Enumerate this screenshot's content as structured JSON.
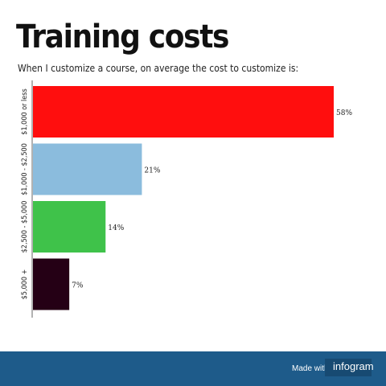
{
  "header": {
    "title": "Training costs",
    "subtitle": "When I customize a course, on average the cost to customize is:"
  },
  "footer": {
    "made_with": "Made with",
    "brand": "infogram"
  },
  "chart_data": {
    "type": "bar",
    "orientation": "horizontal",
    "title": "Training costs",
    "subtitle": "When I customize a course, on average the cost to customize is:",
    "xlabel": "",
    "ylabel": "",
    "categories": [
      "$1,000 or less",
      "$1,000 - $2,500",
      "$2,500 - $5,000",
      "$5,000 +"
    ],
    "values": [
      58,
      21,
      14,
      7
    ],
    "value_labels": [
      "58%",
      "21%",
      "14%",
      "7%"
    ],
    "colors": [
      "#ff0e0e",
      "#8bbcdd",
      "#3fc24a",
      "#250015"
    ],
    "xlim": [
      0,
      58
    ],
    "grid": false,
    "legend": "none"
  }
}
